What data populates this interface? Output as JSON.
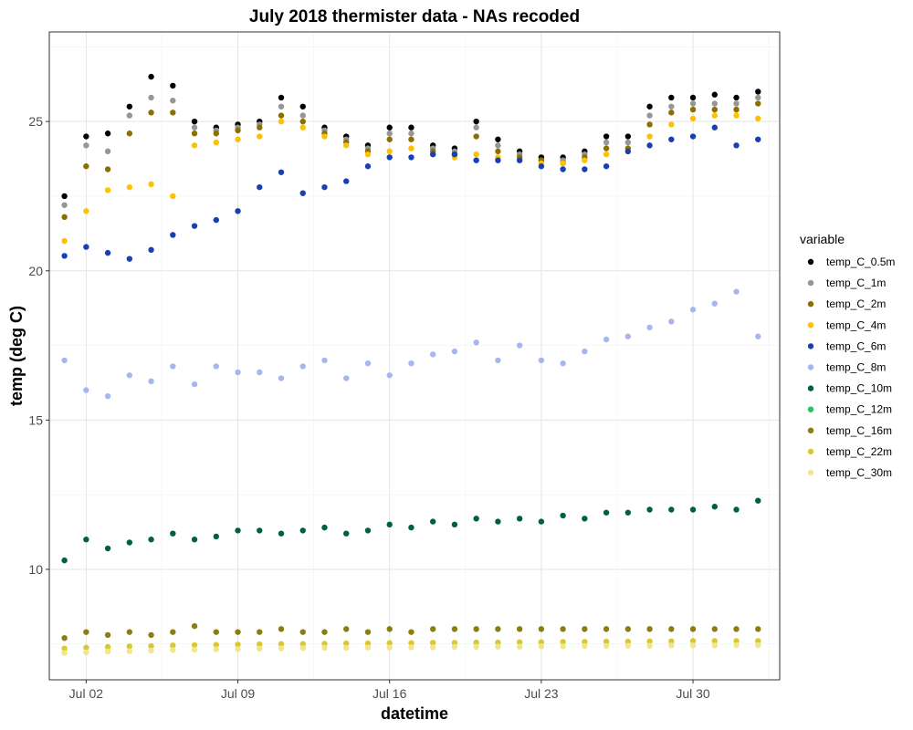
{
  "chart_data": {
    "type": "scatter",
    "title": "July 2018 thermister data - NAs recoded",
    "xlabel": "datetime",
    "ylabel": "temp (deg C)",
    "x_ticks": [
      "Jul 02",
      "Jul 09",
      "Jul 16",
      "Jul 23",
      "Jul 30"
    ],
    "x_tick_days": [
      2,
      9,
      16,
      23,
      30
    ],
    "xlim": [
      0.3,
      34.0
    ],
    "y_ticks": [
      "10",
      "15",
      "20",
      "25"
    ],
    "y_tick_values": [
      10,
      15,
      20,
      25
    ],
    "ylim": [
      6.3,
      28.0
    ],
    "grid": true,
    "legend_title": "variable",
    "legend_position": "right",
    "series": [
      {
        "name": "temp_C_0.5m",
        "color": "#000000",
        "x": [
          1,
          2,
          3,
          4,
          5,
          6,
          7,
          8,
          9,
          10,
          11,
          12,
          13,
          14,
          15,
          16,
          17,
          18,
          19,
          20,
          21,
          22,
          23,
          24,
          25,
          26,
          27,
          28,
          29,
          30,
          31,
          32,
          33
        ],
        "values": [
          22.5,
          24.5,
          24.6,
          25.5,
          26.5,
          26.2,
          25.0,
          24.8,
          24.9,
          25.0,
          25.8,
          25.5,
          24.8,
          24.5,
          24.2,
          24.8,
          24.8,
          24.2,
          24.1,
          25.0,
          24.4,
          24.0,
          23.8,
          23.8,
          24.0,
          24.5,
          24.5,
          25.5,
          25.8,
          25.8,
          25.9,
          25.8,
          26.0
        ]
      },
      {
        "name": "temp_C_1m",
        "color": "#969696",
        "x": [
          1,
          2,
          3,
          4,
          5,
          6,
          7,
          8,
          9,
          10,
          11,
          12,
          13,
          14,
          15,
          16,
          17,
          18,
          19,
          20,
          21,
          22,
          23,
          24,
          25,
          26,
          27,
          28,
          29,
          30,
          31,
          32,
          33
        ],
        "values": [
          22.2,
          24.2,
          24.0,
          25.2,
          25.8,
          25.7,
          24.8,
          24.7,
          24.8,
          24.9,
          25.5,
          25.2,
          24.7,
          24.4,
          24.1,
          24.6,
          24.6,
          24.1,
          24.0,
          24.8,
          24.2,
          23.9,
          23.7,
          23.7,
          23.9,
          24.3,
          24.3,
          25.2,
          25.5,
          25.6,
          25.6,
          25.6,
          25.8
        ]
      },
      {
        "name": "temp_C_2m",
        "color": "#8B6F00",
        "x": [
          1,
          2,
          3,
          4,
          5,
          6,
          7,
          8,
          9,
          10,
          11,
          12,
          13,
          14,
          15,
          16,
          17,
          18,
          19,
          20,
          21,
          22,
          23,
          24,
          25,
          26,
          27,
          28,
          29,
          30,
          31,
          32,
          33
        ],
        "values": [
          21.8,
          23.5,
          23.4,
          24.6,
          25.3,
          25.3,
          24.6,
          24.6,
          24.7,
          24.8,
          25.2,
          25.0,
          24.6,
          24.3,
          24.0,
          24.4,
          24.4,
          24.0,
          23.9,
          24.5,
          24.0,
          23.8,
          23.7,
          23.6,
          23.8,
          24.1,
          24.1,
          24.9,
          25.3,
          25.4,
          25.4,
          25.4,
          25.6
        ]
      },
      {
        "name": "temp_C_4m",
        "color": "#FFC000",
        "x": [
          1,
          2,
          3,
          4,
          5,
          6,
          7,
          8,
          9,
          10,
          11,
          12,
          13,
          14,
          15,
          16,
          17,
          18,
          19,
          20,
          21,
          22,
          23,
          24,
          25,
          26,
          27,
          28,
          29,
          30,
          31,
          32,
          33
        ],
        "values": [
          21.0,
          22.0,
          22.7,
          22.8,
          22.9,
          22.5,
          24.2,
          24.3,
          24.4,
          24.5,
          25.0,
          24.8,
          24.5,
          24.2,
          23.9,
          24.0,
          24.1,
          23.9,
          23.8,
          23.9,
          23.8,
          23.7,
          23.6,
          23.6,
          23.7,
          23.9,
          24.0,
          24.5,
          24.9,
          25.1,
          25.2,
          25.2,
          25.1
        ]
      },
      {
        "name": "temp_C_6m",
        "color": "#1A3FB4",
        "x": [
          1,
          2,
          3,
          4,
          5,
          6,
          7,
          8,
          9,
          10,
          11,
          12,
          13,
          14,
          15,
          16,
          17,
          18,
          19,
          20,
          21,
          22,
          23,
          24,
          25,
          26,
          27,
          28,
          29,
          30,
          31,
          32,
          33
        ],
        "values": [
          20.5,
          20.8,
          20.6,
          20.4,
          20.7,
          21.2,
          21.5,
          21.7,
          22.0,
          22.8,
          23.3,
          22.6,
          22.8,
          23.0,
          23.5,
          23.8,
          23.8,
          23.9,
          23.9,
          23.7,
          23.7,
          23.7,
          23.5,
          23.4,
          23.4,
          23.5,
          24.0,
          24.2,
          24.4,
          24.5,
          24.8,
          24.2,
          24.4
        ]
      },
      {
        "name": "temp_C_8m",
        "color": "#A8B6F0",
        "x": [
          1,
          2,
          3,
          4,
          5,
          6,
          7,
          8,
          9,
          10,
          11,
          12,
          13,
          14,
          15,
          16,
          17,
          18,
          19,
          20,
          21,
          22,
          23,
          24,
          25,
          26,
          27,
          28,
          29,
          30,
          31,
          32,
          33
        ],
        "values": [
          17.0,
          16.0,
          15.8,
          16.5,
          16.3,
          16.8,
          16.2,
          16.8,
          16.6,
          16.6,
          16.4,
          16.8,
          17.0,
          16.4,
          16.9,
          16.5,
          16.9,
          17.2,
          17.3,
          17.6,
          17.0,
          17.5,
          17.0,
          16.9,
          17.3,
          17.7,
          17.8,
          18.1,
          18.3,
          18.7,
          18.9,
          19.3,
          17.8
        ]
      },
      {
        "name": "temp_C_10m",
        "color": "#006040",
        "x": [
          1,
          2,
          3,
          4,
          5,
          6,
          7,
          8,
          9,
          10,
          11,
          12,
          13,
          14,
          15,
          16,
          17,
          18,
          19,
          20,
          21,
          22,
          23,
          24,
          25,
          26,
          27,
          28,
          29,
          30,
          31,
          32,
          33
        ],
        "values": [
          10.3,
          11.0,
          10.7,
          10.9,
          11.0,
          11.2,
          11.0,
          11.1,
          11.3,
          11.3,
          11.2,
          11.3,
          11.4,
          11.2,
          11.3,
          11.5,
          11.4,
          11.6,
          11.5,
          11.7,
          11.6,
          11.7,
          11.6,
          11.8,
          11.7,
          11.9,
          11.9,
          12.0,
          12.0,
          12.0,
          12.1,
          12.0,
          12.3
        ]
      },
      {
        "name": "temp_C_12m",
        "color": "#22C55E",
        "x": [],
        "values": []
      },
      {
        "name": "temp_C_16m",
        "color": "#8B7D10",
        "x": [
          1,
          2,
          3,
          4,
          5,
          6,
          7,
          8,
          9,
          10,
          11,
          12,
          13,
          14,
          15,
          16,
          17,
          18,
          19,
          20,
          21,
          22,
          23,
          24,
          25,
          26,
          27,
          28,
          29,
          30,
          31,
          32,
          33
        ],
        "values": [
          7.7,
          7.9,
          7.8,
          7.9,
          7.8,
          7.9,
          8.1,
          7.9,
          7.9,
          7.9,
          8.0,
          7.9,
          7.9,
          8.0,
          7.9,
          8.0,
          7.9,
          8.0,
          8.0,
          8.0,
          8.0,
          8.0,
          8.0,
          8.0,
          8.0,
          8.0,
          8.0,
          8.0,
          8.0,
          8.0,
          8.0,
          8.0,
          8.0
        ]
      },
      {
        "name": "temp_C_22m",
        "color": "#D9C830",
        "x": [
          1,
          2,
          3,
          4,
          5,
          6,
          7,
          8,
          9,
          10,
          11,
          12,
          13,
          14,
          15,
          16,
          17,
          18,
          19,
          20,
          21,
          22,
          23,
          24,
          25,
          26,
          27,
          28,
          29,
          30,
          31,
          32,
          33
        ],
        "values": [
          7.35,
          7.38,
          7.4,
          7.42,
          7.43,
          7.45,
          7.46,
          7.47,
          7.48,
          7.49,
          7.5,
          7.5,
          7.51,
          7.52,
          7.52,
          7.53,
          7.53,
          7.54,
          7.54,
          7.55,
          7.55,
          7.56,
          7.56,
          7.57,
          7.57,
          7.58,
          7.58,
          7.59,
          7.59,
          7.6,
          7.6,
          7.6,
          7.6
        ]
      },
      {
        "name": "temp_C_30m",
        "color": "#F0E68C",
        "x": [
          1,
          2,
          3,
          4,
          5,
          6,
          7,
          8,
          9,
          10,
          11,
          12,
          13,
          14,
          15,
          16,
          17,
          18,
          19,
          20,
          21,
          22,
          23,
          24,
          25,
          26,
          27,
          28,
          29,
          30,
          31,
          32,
          33
        ],
        "values": [
          7.2,
          7.22,
          7.25,
          7.26,
          7.28,
          7.3,
          7.31,
          7.32,
          7.33,
          7.34,
          7.35,
          7.36,
          7.37,
          7.37,
          7.38,
          7.38,
          7.39,
          7.39,
          7.4,
          7.4,
          7.41,
          7.41,
          7.42,
          7.42,
          7.43,
          7.43,
          7.44,
          7.44,
          7.45,
          7.45,
          7.45,
          7.46,
          7.46
        ]
      }
    ]
  }
}
